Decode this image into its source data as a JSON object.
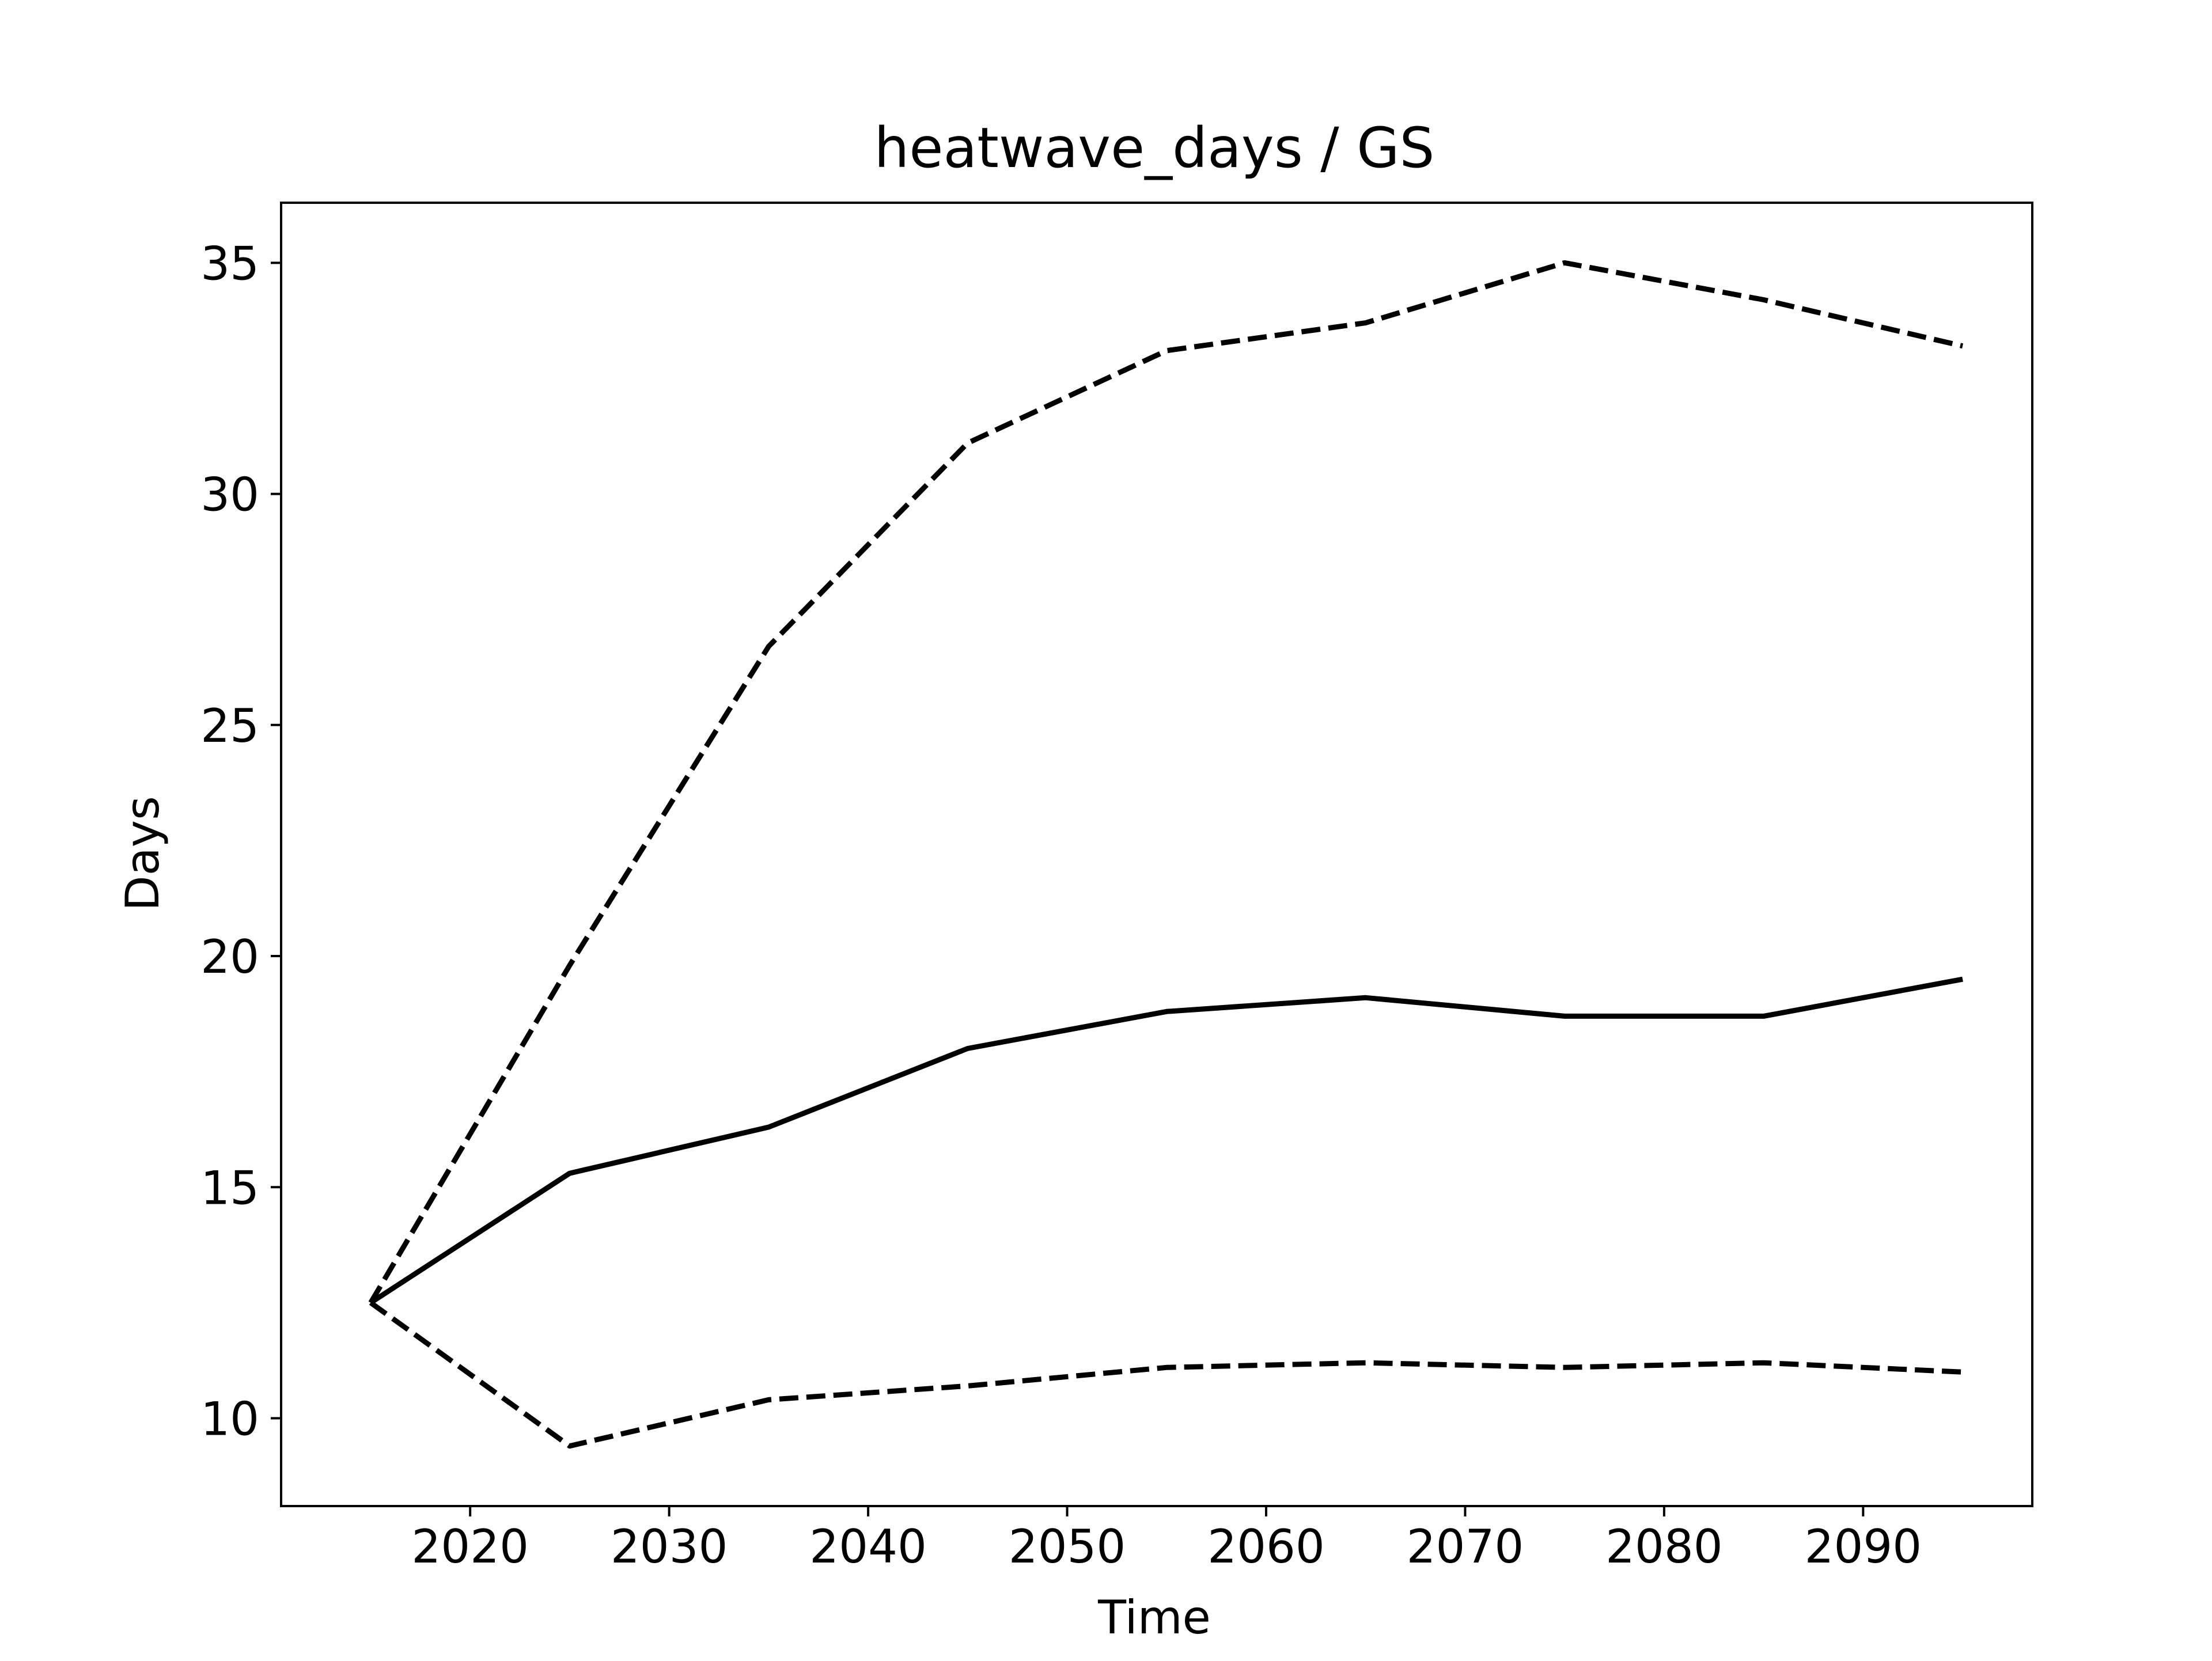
{
  "chart_data": {
    "type": "line",
    "title": "heatwave_days / GS",
    "xlabel": "Time",
    "ylabel": "Days",
    "x": [
      2015,
      2025,
      2035,
      2045,
      2055,
      2065,
      2075,
      2085,
      2095
    ],
    "xlim": [
      2010.5,
      2098.5
    ],
    "ylim": [
      8.1,
      36.3
    ],
    "xticks": [
      2020,
      2030,
      2040,
      2050,
      2060,
      2070,
      2080,
      2090
    ],
    "yticks": [
      10,
      15,
      20,
      25,
      30,
      35
    ],
    "grid": false,
    "legend": "none",
    "series": [
      {
        "values": [
          12.5,
          15.3,
          16.3,
          18.0,
          18.8,
          19.1,
          18.7,
          18.7,
          19.5
        ],
        "style": "solid",
        "color": "#000000"
      },
      {
        "values": [
          12.5,
          19.8,
          26.7,
          31.1,
          33.1,
          33.7,
          35.0,
          34.2,
          33.2
        ],
        "style": "dashed",
        "color": "#000000"
      },
      {
        "values": [
          12.5,
          9.4,
          10.4,
          10.7,
          11.1,
          11.2,
          11.1,
          11.2,
          11.0
        ],
        "style": "dashed",
        "color": "#000000"
      }
    ]
  }
}
